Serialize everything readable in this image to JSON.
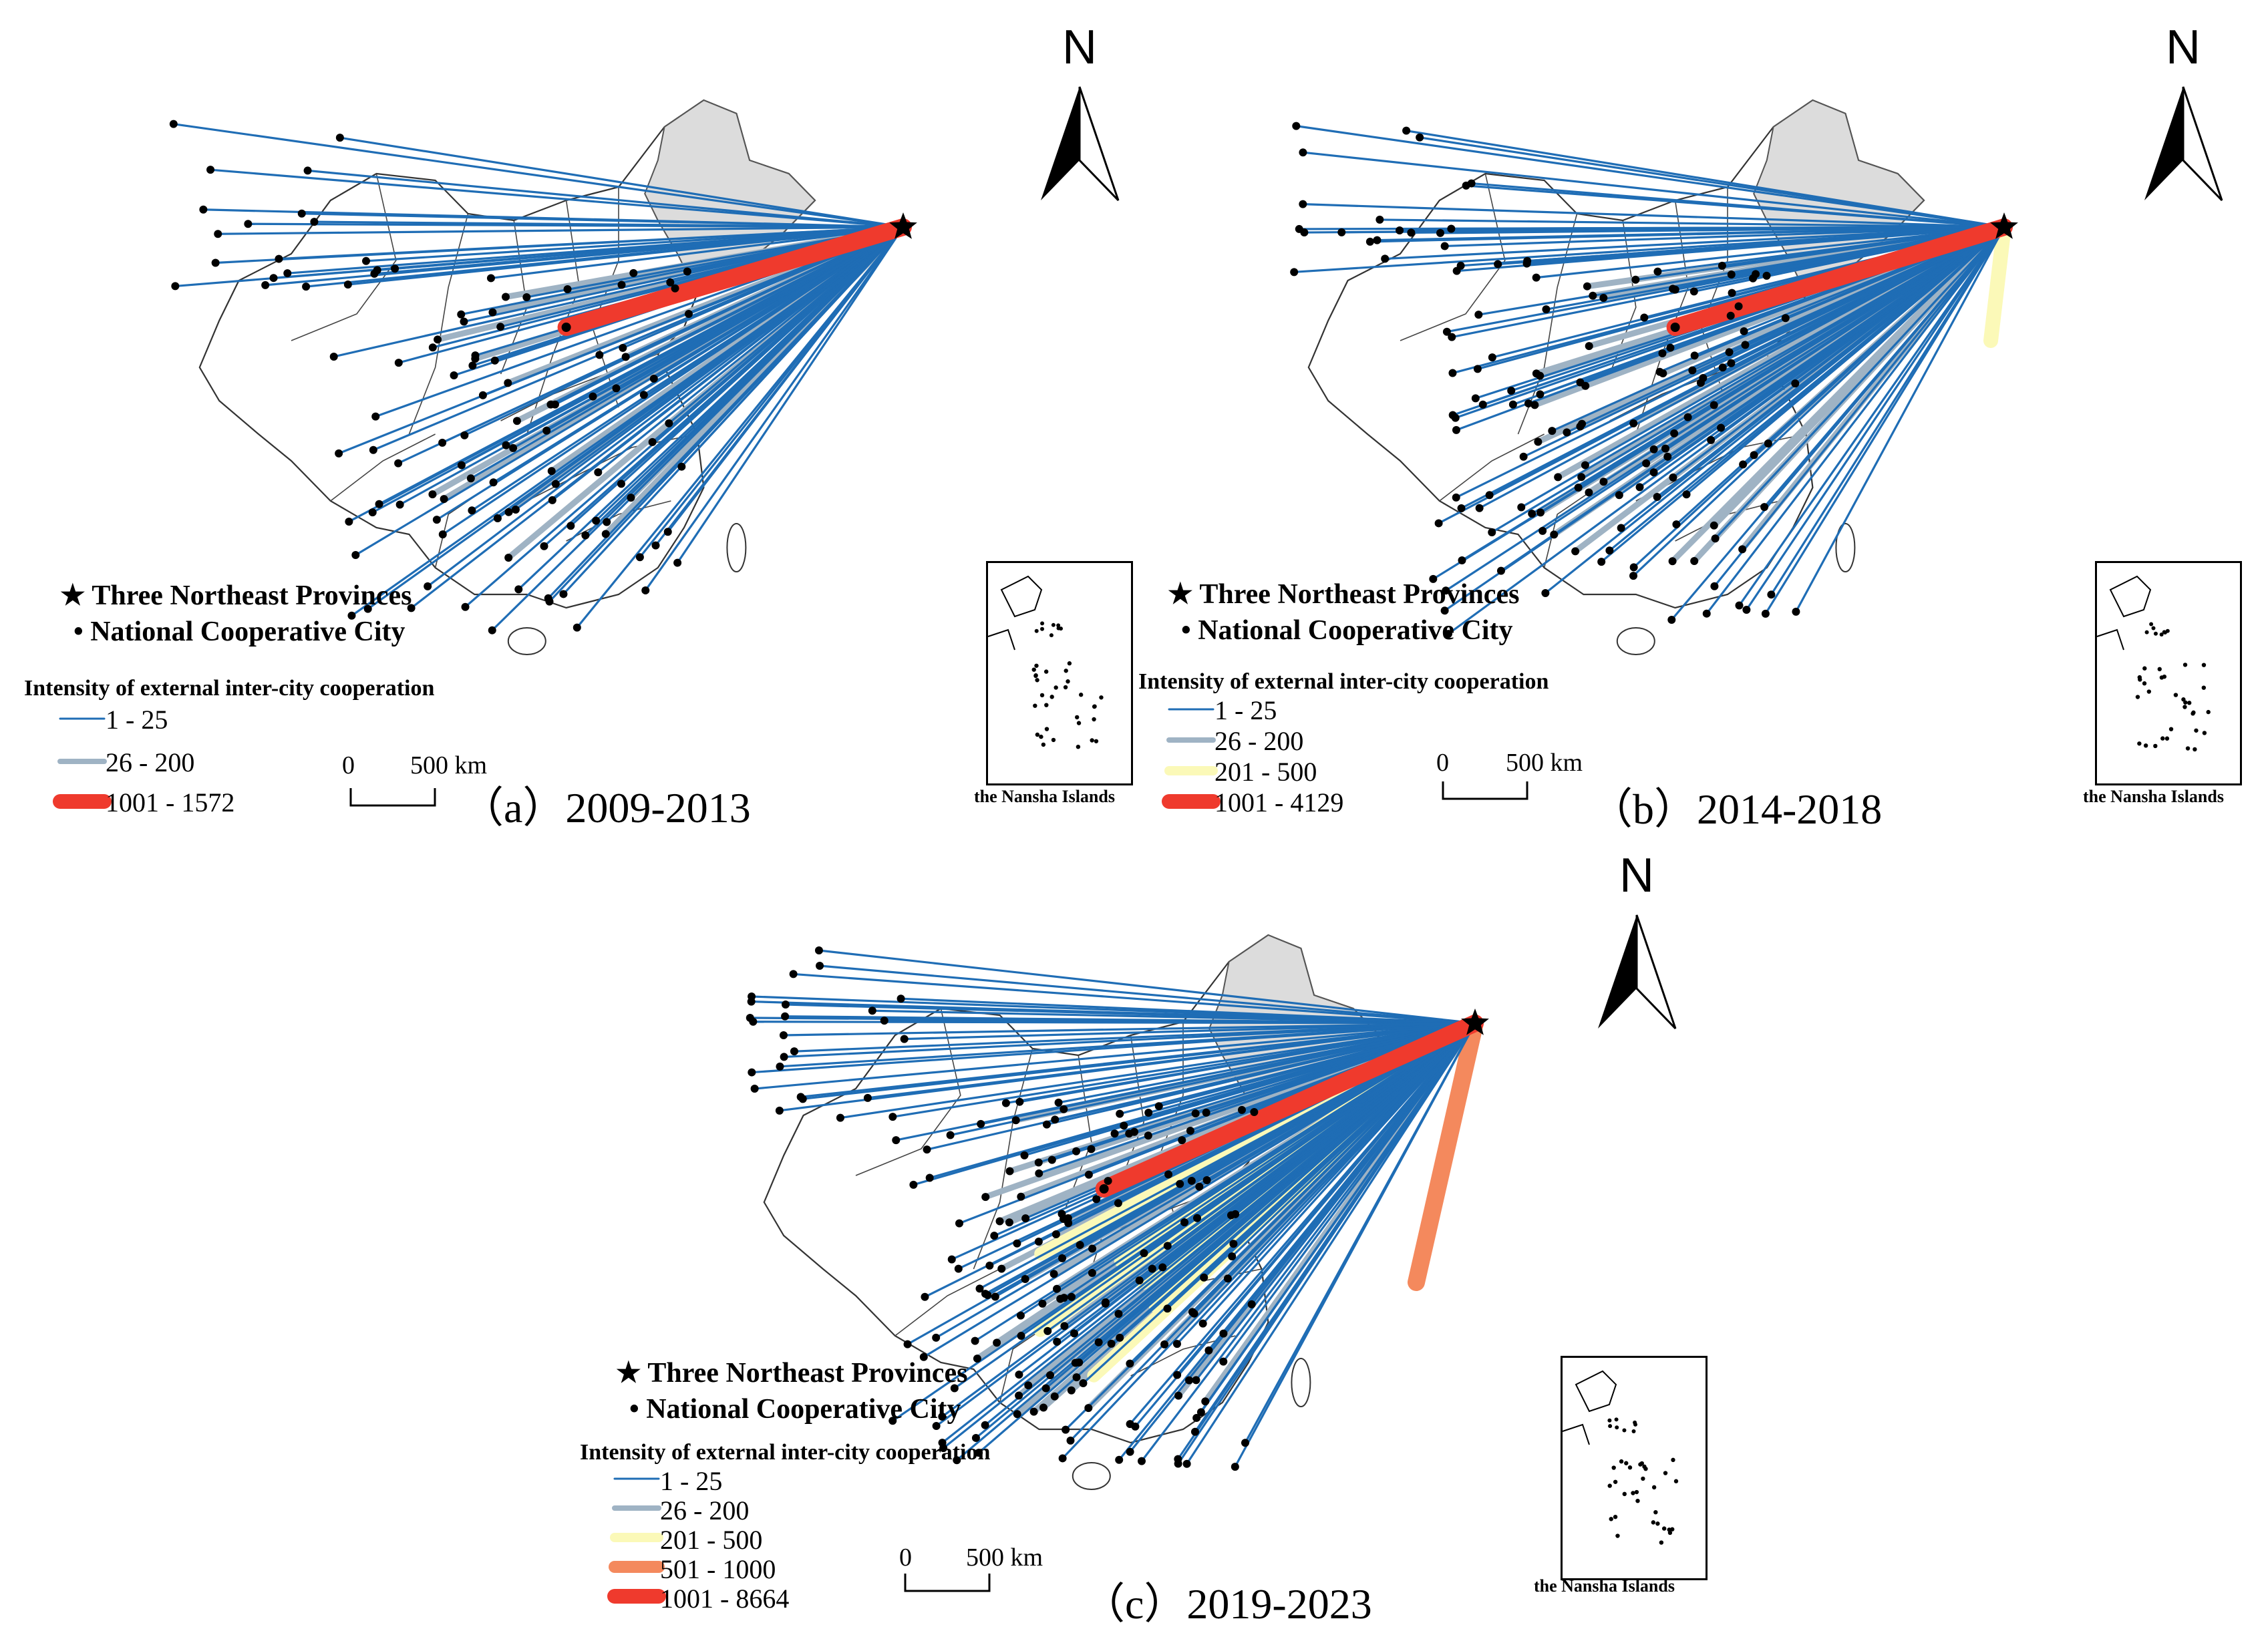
{
  "legend": {
    "star_label": "Three Northeast Provinces",
    "city_label": "National Cooperative City",
    "intensity_title": "Intensity of external inter-city cooperation"
  },
  "colors": {
    "class_1_25": "#1f6db5",
    "class_26_200": "#9fb3c4",
    "class_201_500": "#fbf9b8",
    "class_501_1000": "#f4895d",
    "class_1001_plus": "#ef3a2d",
    "northeast_fill": "#dcdcdc"
  },
  "scale": {
    "zero": "0",
    "distance": "500 km"
  },
  "north_label": "N",
  "inset_label": "the Nansha Islands",
  "panels": [
    {
      "caption": "（a）2009-2013",
      "classes": [
        "1 - 25",
        "26 - 200",
        "1001 - 1572"
      ],
      "class_colors": [
        "#1f6db5",
        "#9fb3c4",
        "#ef3a2d"
      ]
    },
    {
      "caption": "（b）2014-2018",
      "classes": [
        "1 - 25",
        "26 - 200",
        "201 - 500",
        "1001 - 4129"
      ],
      "class_colors": [
        "#1f6db5",
        "#9fb3c4",
        "#fbf9b8",
        "#ef3a2d"
      ]
    },
    {
      "caption": "（c）2019-2023",
      "classes": [
        "1 - 25",
        "26 - 200",
        "201 - 500",
        "501 - 1000",
        "1001 - 8664"
      ],
      "class_colors": [
        "#1f6db5",
        "#9fb3c4",
        "#fbf9b8",
        "#f4895d",
        "#ef3a2d"
      ]
    }
  ]
}
